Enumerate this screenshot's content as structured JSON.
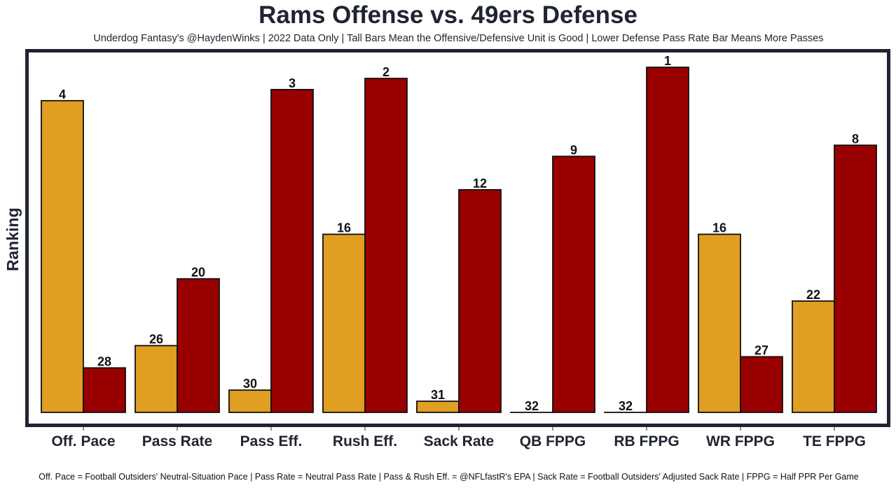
{
  "chart_data": {
    "type": "bar",
    "title": "Rams Offense vs. 49ers Defense",
    "subtitle": "Underdog Fantasy's @HaydenWinks | 2022 Data Only | Tall Bars Mean the Offensive/Defensive Unit is Good | Lower Defense Pass Rate Bar Means More Passes",
    "caption": "Off. Pace = Football Outsiders' Neutral-Situation Pace | Pass Rate = Neutral Pass Rate | Pass & Rush Eff. = @NFLfastR's EPA | Sack Rate = Football Outsiders' Adjusted Sack Rate | FPPG = Half PPR Per Game",
    "xlabel": "",
    "ylabel": "Ranking",
    "y_scale": "rank (1 = tallest, 32 = zero height)",
    "ylim": [
      32,
      1
    ],
    "grid": false,
    "legend": "none",
    "categories": [
      "Off. Pace",
      "Pass Rate",
      "Pass Eff.",
      "Rush Eff.",
      "Sack Rate",
      "QB FPPG",
      "RB FPPG",
      "WR FPPG",
      "TE FPPG"
    ],
    "series": [
      {
        "name": "Rams Offense",
        "color": "#e09e22",
        "values": [
          4,
          26,
          30,
          16,
          31,
          32,
          32,
          16,
          22
        ]
      },
      {
        "name": "49ers Defense",
        "color": "#990000",
        "values": [
          28,
          20,
          3,
          2,
          12,
          9,
          1,
          27,
          8
        ]
      }
    ]
  },
  "colors": {
    "frame": "#1f2430",
    "bar_outline": "#111111",
    "text": "#1f2430"
  }
}
